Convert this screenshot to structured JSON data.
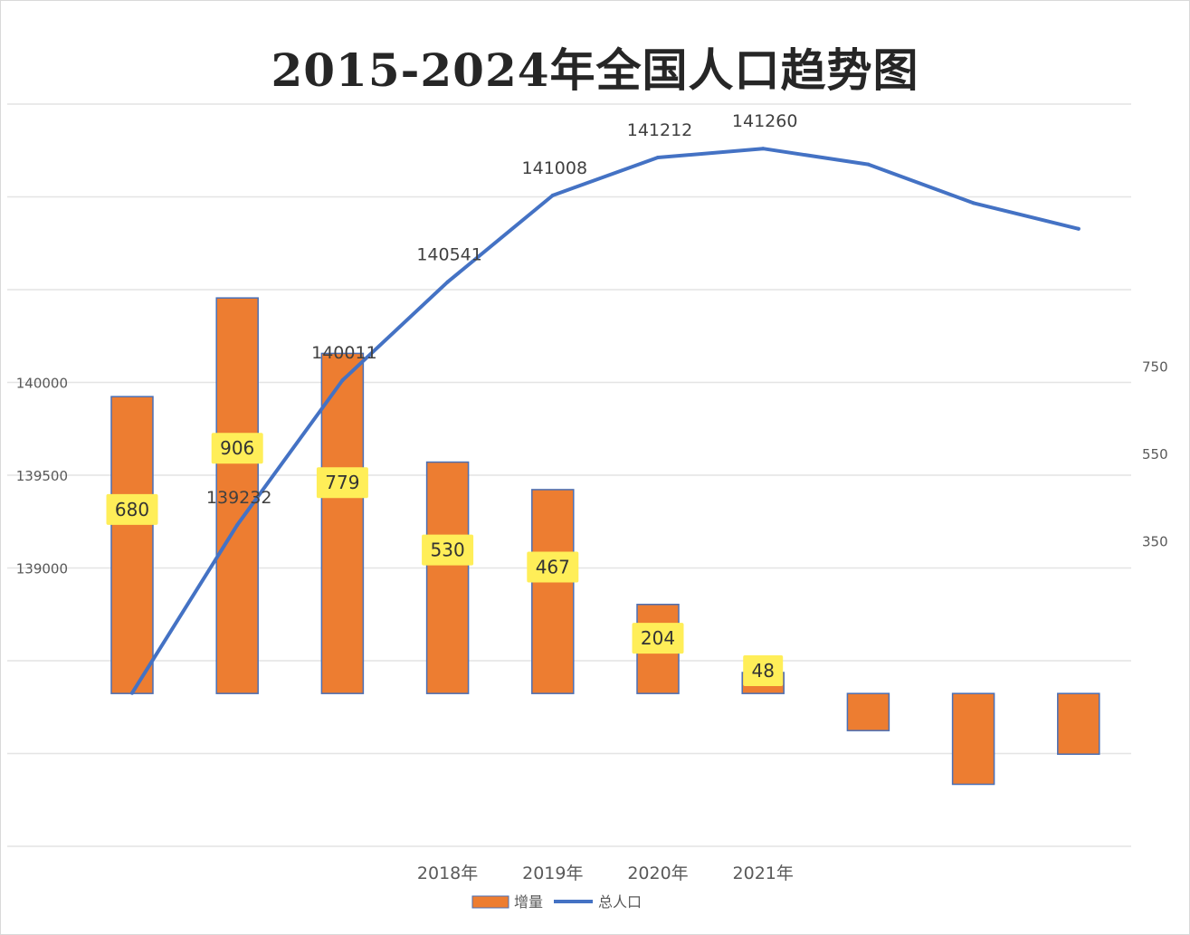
{
  "chart_data": {
    "type": "bar+line",
    "title": "2015-2024年全国人口趋势图",
    "categories": [
      "",
      "",
      "",
      "2018年",
      "2019年",
      "2020年",
      "2021年",
      "",
      "",
      ""
    ],
    "series": [
      {
        "name": "增量",
        "type": "bar",
        "axis": "right",
        "color": "#ed7d31",
        "values": [
          680,
          906,
          779,
          530,
          467,
          204,
          48,
          -85,
          -208,
          -139
        ],
        "labels": [
          "680",
          "906",
          "779",
          "530",
          "467",
          "204",
          "48",
          "",
          "",
          ""
        ]
      },
      {
        "name": "总人口",
        "type": "line",
        "axis": "left",
        "color": "#4472c4",
        "values": [
          138326,
          139232,
          140011,
          140541,
          141008,
          141212,
          141260,
          141175,
          140967,
          140828
        ],
        "labels": [
          "",
          "139232",
          "140011",
          "140541",
          "141008",
          "141212",
          "141260",
          "",
          "",
          ""
        ]
      }
    ],
    "y_left": {
      "ylim": [
        137500,
        141500
      ],
      "tick_labels": [
        "140000",
        "139500",
        "139000"
      ],
      "tick_values": [
        140000,
        139500,
        139000
      ]
    },
    "y_right": {
      "ylim": [
        -350,
        1350
      ],
      "tick_labels": [
        "750",
        "550",
        "350"
      ],
      "tick_values": [
        750,
        550,
        350
      ]
    },
    "grid": true,
    "legend_position": "bottom"
  }
}
